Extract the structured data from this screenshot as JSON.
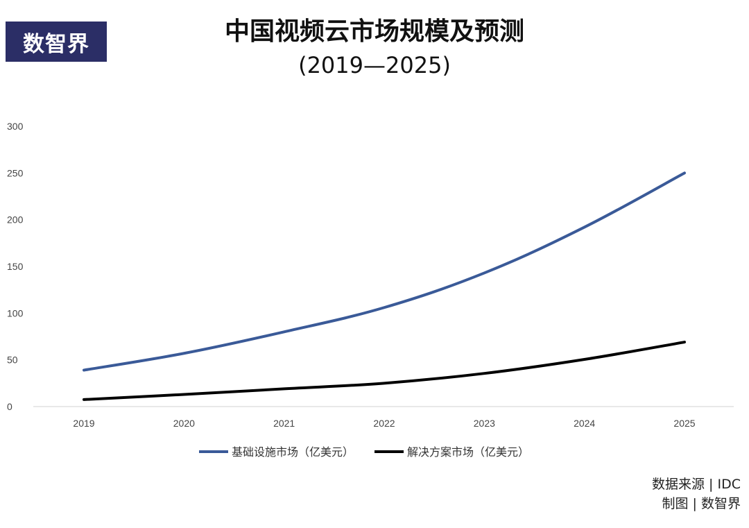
{
  "logo": {
    "text": "数智界"
  },
  "header": {
    "title": "中国视频云市场规模及预测",
    "subtitle": "(2019—2025)"
  },
  "footer": {
    "source": "数据来源 | IDC",
    "credit": "制图 | 数智界"
  },
  "colors": {
    "series1": "#3a5a98",
    "series2": "#000000",
    "axis": "#d0d0d0"
  },
  "chart_data": {
    "type": "line",
    "title": "中国视频云市场规模及预测",
    "subtitle": "(2019—2025)",
    "xlabel": "",
    "ylabel": "",
    "categories": [
      "2019",
      "2020",
      "2021",
      "2022",
      "2023",
      "2024",
      "2025"
    ],
    "ylim": [
      0,
      300
    ],
    "yticks": [
      "0",
      "50",
      "100",
      "150",
      "200",
      "250",
      "300"
    ],
    "grid": false,
    "legend": "bottom",
    "series": [
      {
        "name": "基础设施市场（亿美元）",
        "values": [
          39,
          57,
          80,
          106,
          143,
          192,
          250
        ]
      },
      {
        "name": "解决方案市场（亿美元）",
        "values": [
          7.5,
          13,
          19,
          25,
          35.5,
          50.5,
          69
        ]
      }
    ]
  }
}
